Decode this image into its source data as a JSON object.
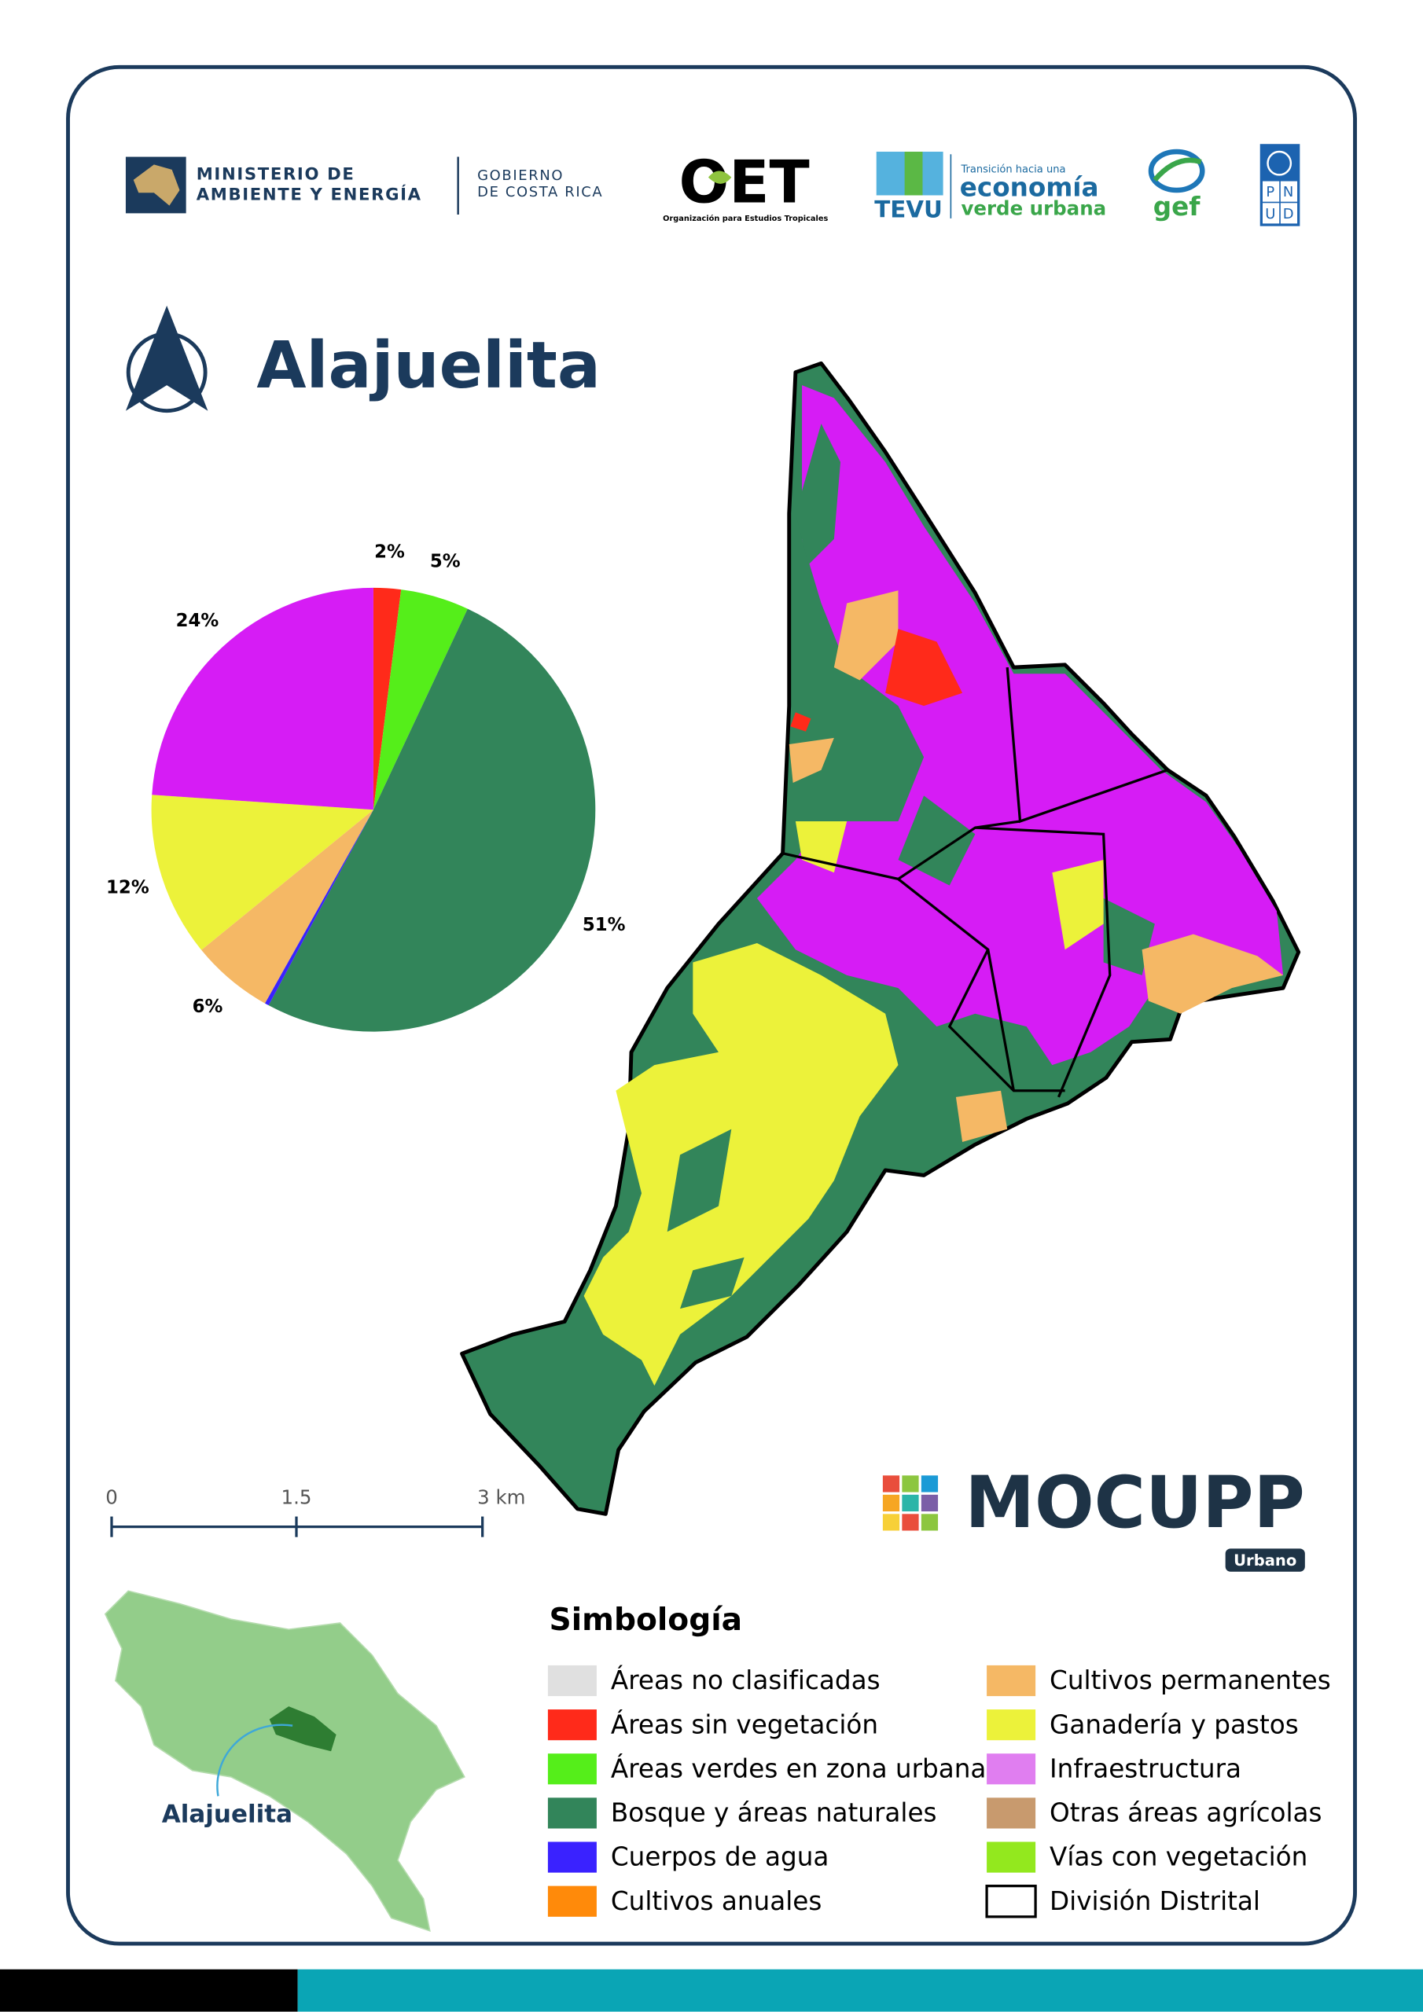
{
  "header": {
    "ministry": [
      "MINISTERIO DE",
      "AMBIENTE Y ENERGÍA"
    ],
    "government": [
      "GOBIERNO",
      "DE COSTA RICA"
    ],
    "oet": "OET",
    "oet_caption": "Organización para Estudios Tropicales",
    "tevu": "TEVU",
    "tevu_caption": "Transición hacia una",
    "tevu_line1": "economía",
    "tevu_line2": "verde urbana",
    "gef": "gef",
    "pnud": [
      "P",
      "N",
      "U",
      "D"
    ]
  },
  "title": "Alajuelita",
  "chart_data": {
    "type": "pie",
    "values": [
      2,
      5,
      51,
      0.3,
      6,
      12,
      24
    ],
    "value_labels": [
      "2%",
      "5%",
      "51%",
      null,
      "6%",
      "12%",
      "24%"
    ],
    "colors": [
      "#ff2a1a",
      "#55ee1a",
      "#32855a",
      "#3a22ff",
      "#f5b865",
      "#ecf23a",
      "#d61cf5"
    ]
  },
  "scale_bar": {
    "labels": [
      "0",
      "1.5",
      "3 km"
    ]
  },
  "brand": {
    "name": "MOCUPP",
    "badge": "Urbano"
  },
  "inset": {
    "label": "Alajuelita"
  },
  "legend": {
    "title": "Simbología",
    "items": [
      {
        "label": "Áreas no clasificadas",
        "color": "#e0e0e0"
      },
      {
        "label": "Áreas sin vegetación",
        "color": "#ff2a1a"
      },
      {
        "label": "Áreas verdes en zona urbana",
        "color": "#55ee1a"
      },
      {
        "label": "Bosque y áreas naturales",
        "color": "#32855a"
      },
      {
        "label": "Cuerpos de agua",
        "color": "#3a22ff"
      },
      {
        "label": "Cultivos anuales",
        "color": "#ff8a0a"
      },
      {
        "label": "Cultivos permanentes",
        "color": "#f5b865"
      },
      {
        "label": "Ganadería y pastos",
        "color": "#ecf23a"
      },
      {
        "label": "Infraestructura",
        "color": "#e07ef0"
      },
      {
        "label": "Otras áreas agrícolas",
        "color": "#c89a6e"
      },
      {
        "label": "Vías con vegetación",
        "color": "#93e81e"
      },
      {
        "label": "División Distrital",
        "color": "#ffffff",
        "border": "#000000"
      }
    ]
  }
}
